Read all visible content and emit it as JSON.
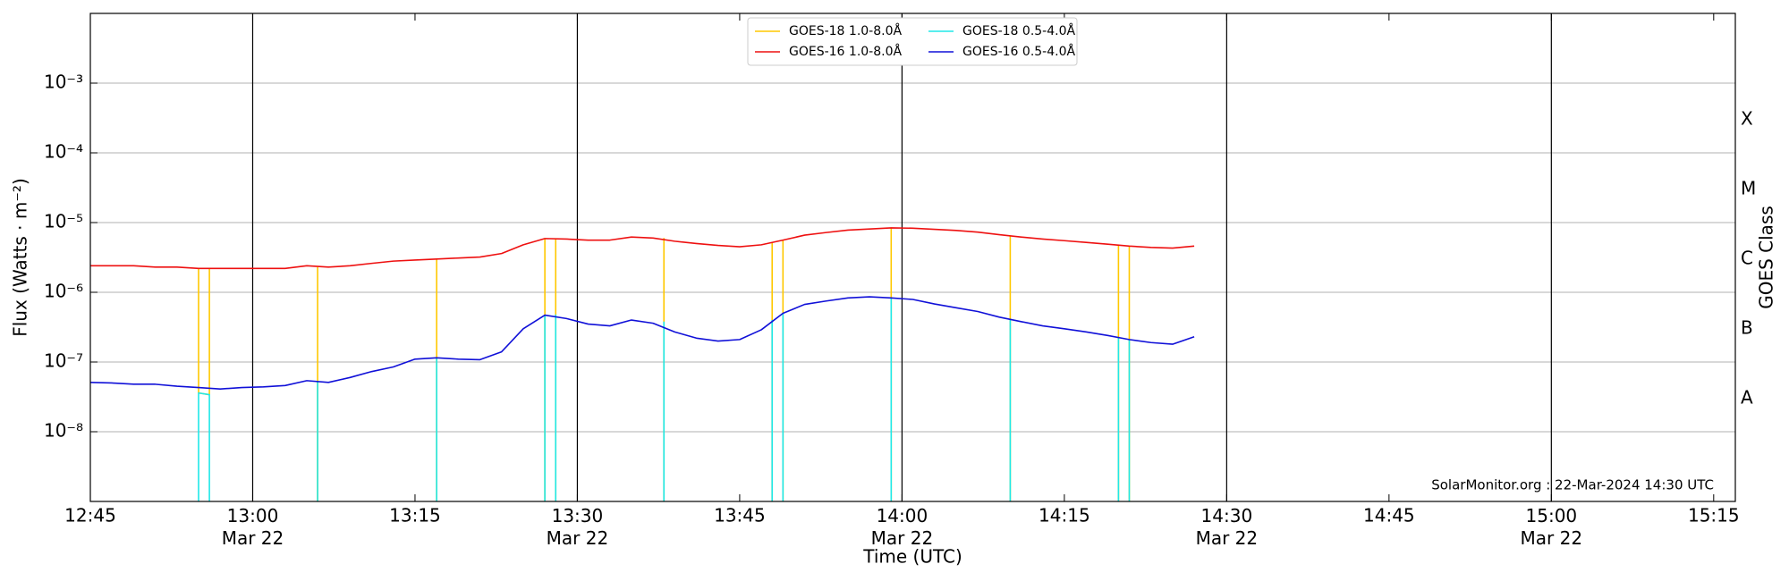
{
  "chart_data": {
    "type": "line",
    "xlabel": "Time (UTC)",
    "ylabel": "Flux (Watts · m⁻²)",
    "y2label": "GOES Class",
    "annotation": "SolarMonitor.org : 22-Mar-2024 14:30 UTC",
    "log_y": true,
    "grid": true,
    "legend": "upper center",
    "xlim": [
      "12:45",
      "15:17"
    ],
    "xticks": [
      {
        "value": "12:45",
        "label": "12:45"
      },
      {
        "value": "13:00",
        "label": "13:00\nMar 22"
      },
      {
        "value": "13:15",
        "label": "13:15"
      },
      {
        "value": "13:30",
        "label": "13:30\nMar 22"
      },
      {
        "value": "13:45",
        "label": "13:45"
      },
      {
        "value": "14:00",
        "label": "14:00\nMar 22"
      },
      {
        "value": "14:15",
        "label": "14:15"
      },
      {
        "value": "14:30",
        "label": "14:30\nMar 22"
      },
      {
        "value": "14:45",
        "label": "14:45"
      },
      {
        "value": "15:00",
        "label": "15:00\nMar 22"
      },
      {
        "value": "15:15",
        "label": "15:15"
      }
    ],
    "x_grid": [
      "13:00",
      "13:30",
      "14:00",
      "14:30",
      "15:00"
    ],
    "ylim": [
      1e-09,
      0.01
    ],
    "yticks": [
      {
        "value": 1e-08,
        "label": "10⁻⁸"
      },
      {
        "value": 1e-07,
        "label": "10⁻⁷"
      },
      {
        "value": 1e-06,
        "label": "10⁻⁶"
      },
      {
        "value": 1e-05,
        "label": "10⁻⁵"
      },
      {
        "value": 0.0001,
        "label": "10⁻⁴"
      },
      {
        "value": 0.001,
        "label": "10⁻³"
      }
    ],
    "y2lim": [
      1e-09,
      0.01
    ],
    "y2ticks": [
      {
        "value": 3e-08,
        "label": "A"
      },
      {
        "value": 3e-07,
        "label": "B"
      },
      {
        "value": 3e-06,
        "label": "C"
      },
      {
        "value": 3e-05,
        "label": "M"
      },
      {
        "value": 0.0003,
        "label": "X"
      }
    ],
    "x": [
      "12:45",
      "12:47",
      "12:49",
      "12:51",
      "12:53",
      "12:55",
      "12:57",
      "12:59",
      "13:01",
      "13:03",
      "13:05",
      "13:07",
      "13:09",
      "13:11",
      "13:13",
      "13:15",
      "13:17",
      "13:19",
      "13:21",
      "13:23",
      "13:25",
      "13:27",
      "13:29",
      "13:31",
      "13:33",
      "13:35",
      "13:37",
      "13:39",
      "13:41",
      "13:43",
      "13:45",
      "13:47",
      "13:49",
      "13:51",
      "13:53",
      "13:55",
      "13:57",
      "13:59",
      "14:01",
      "14:03",
      "14:05",
      "14:07",
      "14:09",
      "14:11",
      "14:13",
      "14:15",
      "14:17",
      "14:19",
      "14:21",
      "14:23",
      "14:25",
      "14:27"
    ],
    "series": [
      {
        "name": "GOES-18 1.0-8.0Å",
        "color": "#ffc800",
        "x": [
          "12:55",
          "12:55",
          "12:56",
          "12:56",
          null,
          "13:06",
          "13:06",
          null,
          "13:17",
          "13:17",
          null,
          "13:27",
          "13:27",
          "13:28",
          "13:28",
          null,
          "13:38",
          "13:38",
          null,
          "13:48",
          "13:48",
          "13:49",
          "13:49",
          null,
          "13:59",
          "13:59",
          null,
          "14:10",
          "14:10",
          null,
          "14:20",
          "14:20",
          "14:21",
          "14:21"
        ],
        "values": [
          2.2e-06,
          3.6e-08,
          3.4e-08,
          2.2e-06,
          null,
          2.3e-06,
          1e-10,
          null,
          3e-06,
          1e-10,
          null,
          5.9e-06,
          1e-10,
          1e-10,
          5.9e-06,
          null,
          6e-06,
          1e-10,
          null,
          5.1e-06,
          1e-10,
          1e-10,
          5.6e-06,
          null,
          8.4e-06,
          1e-10,
          null,
          6.5e-06,
          1e-10,
          null,
          4.8e-06,
          1e-10,
          1e-10,
          4.6e-06
        ]
      },
      {
        "name": "GOES-16 1.0-8.0Å",
        "color": "#ee1010",
        "values": [
          2.4e-06,
          2.4e-06,
          2.4e-06,
          2.3e-06,
          2.3e-06,
          2.2e-06,
          2.2e-06,
          2.2e-06,
          2.2e-06,
          2.2e-06,
          2.4e-06,
          2.3e-06,
          2.4e-06,
          2.6e-06,
          2.8e-06,
          2.9e-06,
          3e-06,
          3.1e-06,
          3.2e-06,
          3.6e-06,
          4.8e-06,
          5.9e-06,
          5.8e-06,
          5.6e-06,
          5.6e-06,
          6.2e-06,
          6e-06,
          5.4e-06,
          5e-06,
          4.7e-06,
          4.5e-06,
          4.8e-06,
          5.6e-06,
          6.6e-06,
          7.2e-06,
          7.8e-06,
          8.1e-06,
          8.4e-06,
          8.3e-06,
          8e-06,
          7.7e-06,
          7.3e-06,
          6.7e-06,
          6.2e-06,
          5.8e-06,
          5.5e-06,
          5.2e-06,
          4.9e-06,
          4.6e-06,
          4.4e-06,
          4.3e-06,
          4.6e-06
        ]
      },
      {
        "name": "GOES-18 0.5-4.0Å",
        "color": "#20e8e8",
        "x": [
          "12:55",
          "12:55",
          "12:56",
          "12:56",
          null,
          "13:06",
          "13:06",
          null,
          "13:17",
          "13:17",
          null,
          "13:27",
          "13:27",
          "13:28",
          "13:28",
          null,
          "13:38",
          "13:38",
          null,
          "13:48",
          "13:48",
          "13:49",
          "13:49",
          null,
          "13:59",
          "13:59",
          null,
          "14:10",
          "14:10",
          null,
          "14:20",
          "14:20",
          "14:21",
          "14:21"
        ],
        "values": [
          1e-10,
          3.6e-08,
          3.4e-08,
          1e-10,
          null,
          5.2e-08,
          1e-10,
          null,
          1.15e-07,
          1e-10,
          null,
          4.7e-07,
          1e-10,
          1e-10,
          4.8e-07,
          null,
          3.8e-07,
          1e-10,
          null,
          4e-07,
          1e-10,
          1e-10,
          5e-07,
          null,
          8.3e-07,
          1e-10,
          null,
          4.1e-07,
          1e-10,
          null,
          2.2e-07,
          1e-10,
          1e-10,
          2.1e-07
        ]
      },
      {
        "name": "GOES-16 0.5-4.0Å",
        "color": "#1010d8",
        "values": [
          5.1e-08,
          5e-08,
          4.8e-08,
          4.8e-08,
          4.5e-08,
          4.3e-08,
          4.1e-08,
          4.3e-08,
          4.4e-08,
          4.6e-08,
          5.4e-08,
          5.1e-08,
          6e-08,
          7.3e-08,
          8.5e-08,
          1.1e-07,
          1.15e-07,
          1.1e-07,
          1.08e-07,
          1.4e-07,
          3e-07,
          4.7e-07,
          4.2e-07,
          3.5e-07,
          3.3e-07,
          4e-07,
          3.6e-07,
          2.7e-07,
          2.2e-07,
          2e-07,
          2.1e-07,
          2.9e-07,
          5e-07,
          6.7e-07,
          7.5e-07,
          8.3e-07,
          8.6e-07,
          8.3e-07,
          7.9e-07,
          6.8e-07,
          6e-07,
          5.3e-07,
          4.4e-07,
          3.8e-07,
          3.3e-07,
          3e-07,
          2.7e-07,
          2.4e-07,
          2.1e-07,
          1.9e-07,
          1.8e-07,
          2.3e-07
        ]
      }
    ]
  }
}
